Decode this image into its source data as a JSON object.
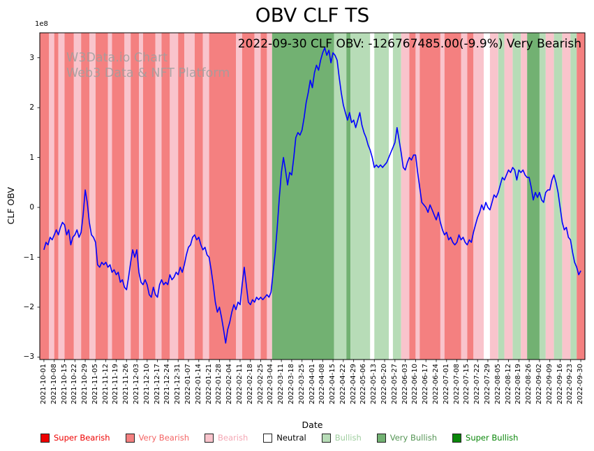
{
  "title": "OBV CLF TS",
  "subtitle": "2022-09-30 CLF OBV: -126767485.00(-9.9%) Very Bearish",
  "watermark": {
    "line1": "W3Data.io Chart",
    "line2": "Web3 Data & NFT Platform"
  },
  "axes": {
    "xlabel": "Date",
    "ylabel": "CLF OBV",
    "y_offset_label": "1e8",
    "xlim": [
      -0.4,
      52.4
    ],
    "ylim": [
      -3.05,
      3.5
    ],
    "y_tick_values": [
      3,
      2,
      1,
      0,
      -1,
      -2,
      -3
    ],
    "y_tick_labels": [
      "3",
      "2",
      "1",
      "0",
      "−1",
      "−2",
      "−3"
    ]
  },
  "chart_data": {
    "type": "line",
    "title": "OBV CLF TS",
    "xlabel": "Date",
    "ylabel": "CLF OBV",
    "y_unit": "1e8",
    "grid": false,
    "line_color": "#0000ff",
    "x_tick_labels": [
      "2021-10-01",
      "2021-10-08",
      "2021-10-15",
      "2021-10-22",
      "2021-10-29",
      "2021-11-05",
      "2021-11-12",
      "2021-11-19",
      "2021-11-26",
      "2021-12-03",
      "2021-12-10",
      "2021-12-17",
      "2021-12-24",
      "2021-12-31",
      "2022-01-07",
      "2022-01-14",
      "2022-01-21",
      "2022-01-28",
      "2022-02-04",
      "2022-02-11",
      "2022-02-18",
      "2022-02-25",
      "2022-03-04",
      "2022-03-11",
      "2022-03-18",
      "2022-03-25",
      "2022-04-01",
      "2022-04-08",
      "2022-04-15",
      "2022-04-22",
      "2022-04-29",
      "2022-05-06",
      "2022-05-13",
      "2022-05-20",
      "2022-05-27",
      "2022-06-03",
      "2022-06-10",
      "2022-06-17",
      "2022-06-24",
      "2022-07-01",
      "2022-07-08",
      "2022-07-15",
      "2022-07-22",
      "2022-07-29",
      "2022-08-05",
      "2022-08-12",
      "2022-08-19",
      "2022-08-26",
      "2022-09-02",
      "2022-09-09",
      "2022-09-16",
      "2022-09-23",
      "2022-09-30"
    ],
    "series": [
      {
        "name": "CLF OBV",
        "x_start": 0,
        "x_step": 0.2,
        "values_unit": "1e8",
        "values": [
          -0.85,
          -0.7,
          -0.75,
          -0.6,
          -0.65,
          -0.55,
          -0.45,
          -0.55,
          -0.4,
          -0.3,
          -0.35,
          -0.55,
          -0.45,
          -0.75,
          -0.6,
          -0.55,
          -0.45,
          -0.6,
          -0.5,
          -0.15,
          0.35,
          0.1,
          -0.3,
          -0.55,
          -0.6,
          -0.7,
          -1.15,
          -1.2,
          -1.1,
          -1.15,
          -1.1,
          -1.2,
          -1.15,
          -1.3,
          -1.25,
          -1.35,
          -1.3,
          -1.5,
          -1.45,
          -1.6,
          -1.65,
          -1.4,
          -1.1,
          -0.85,
          -1.0,
          -0.85,
          -1.3,
          -1.5,
          -1.55,
          -1.45,
          -1.55,
          -1.75,
          -1.8,
          -1.6,
          -1.75,
          -1.8,
          -1.55,
          -1.45,
          -1.55,
          -1.5,
          -1.55,
          -1.35,
          -1.45,
          -1.4,
          -1.3,
          -1.35,
          -1.2,
          -1.3,
          -1.15,
          -0.95,
          -0.8,
          -0.75,
          -0.6,
          -0.55,
          -0.65,
          -0.6,
          -0.75,
          -0.85,
          -0.8,
          -0.95,
          -1.0,
          -1.25,
          -1.55,
          -1.9,
          -2.1,
          -2.0,
          -2.2,
          -2.45,
          -2.72,
          -2.45,
          -2.3,
          -2.1,
          -1.95,
          -2.05,
          -1.9,
          -1.95,
          -1.55,
          -1.2,
          -1.55,
          -1.9,
          -1.95,
          -1.85,
          -1.9,
          -1.8,
          -1.85,
          -1.8,
          -1.85,
          -1.8,
          -1.75,
          -1.8,
          -1.7,
          -1.3,
          -0.9,
          -0.4,
          0.2,
          0.7,
          1.0,
          0.75,
          0.45,
          0.7,
          0.65,
          1.0,
          1.4,
          1.5,
          1.45,
          1.55,
          1.8,
          2.1,
          2.3,
          2.55,
          2.4,
          2.7,
          2.85,
          2.75,
          2.95,
          3.1,
          3.2,
          3.05,
          3.15,
          2.9,
          3.1,
          3.05,
          2.95,
          2.6,
          2.3,
          2.05,
          1.9,
          1.75,
          1.9,
          1.7,
          1.75,
          1.6,
          1.75,
          1.9,
          1.65,
          1.5,
          1.4,
          1.25,
          1.15,
          1.0,
          0.8,
          0.85,
          0.8,
          0.85,
          0.8,
          0.85,
          0.9,
          1.0,
          1.1,
          1.2,
          1.3,
          1.6,
          1.35,
          1.1,
          0.8,
          0.75,
          0.9,
          1.0,
          0.95,
          1.05,
          1.05,
          0.7,
          0.4,
          0.1,
          0.05,
          0.0,
          -0.1,
          0.05,
          -0.05,
          -0.15,
          -0.25,
          -0.1,
          -0.3,
          -0.45,
          -0.55,
          -0.5,
          -0.65,
          -0.6,
          -0.7,
          -0.75,
          -0.7,
          -0.55,
          -0.65,
          -0.6,
          -0.7,
          -0.75,
          -0.65,
          -0.7,
          -0.5,
          -0.35,
          -0.2,
          -0.1,
          0.05,
          -0.05,
          0.1,
          0.0,
          -0.05,
          0.1,
          0.25,
          0.2,
          0.3,
          0.45,
          0.6,
          0.55,
          0.65,
          0.75,
          0.7,
          0.8,
          0.75,
          0.55,
          0.75,
          0.7,
          0.75,
          0.65,
          0.6,
          0.6,
          0.4,
          0.15,
          0.3,
          0.2,
          0.3,
          0.15,
          0.1,
          0.3,
          0.35,
          0.35,
          0.55,
          0.65,
          0.5,
          0.3,
          0.0,
          -0.3,
          -0.45,
          -0.4,
          -0.6,
          -0.65,
          -0.9,
          -1.1,
          -1.2,
          -1.35,
          -1.27
        ]
      }
    ],
    "band_colors": {
      "super_bearish": "#ee0000",
      "very_bearish": "#f48080",
      "bearish": "#f9c4cc",
      "neutral": "#ffffff",
      "bullish": "#b7dcb7",
      "very_bullish": "#72b172",
      "super_bullish": "#0a870a"
    },
    "background_bands": [
      [
        -0.4,
        0.5,
        "very_bearish"
      ],
      [
        0.5,
        1.0,
        "bearish"
      ],
      [
        1.0,
        1.4,
        "very_bearish"
      ],
      [
        1.4,
        2.0,
        "bearish"
      ],
      [
        2.0,
        2.9,
        "very_bearish"
      ],
      [
        2.9,
        3.6,
        "bearish"
      ],
      [
        3.6,
        4.4,
        "very_bearish"
      ],
      [
        4.4,
        5.0,
        "bearish"
      ],
      [
        5.0,
        6.2,
        "very_bearish"
      ],
      [
        6.2,
        6.6,
        "bearish"
      ],
      [
        6.6,
        7.8,
        "very_bearish"
      ],
      [
        7.8,
        8.4,
        "bearish"
      ],
      [
        8.4,
        9.2,
        "very_bearish"
      ],
      [
        9.2,
        9.6,
        "bearish"
      ],
      [
        9.6,
        10.8,
        "very_bearish"
      ],
      [
        10.8,
        11.4,
        "bearish"
      ],
      [
        11.4,
        12.2,
        "very_bearish"
      ],
      [
        12.2,
        13.0,
        "bearish"
      ],
      [
        13.0,
        13.6,
        "very_bearish"
      ],
      [
        13.6,
        14.6,
        "bearish"
      ],
      [
        14.6,
        15.4,
        "very_bearish"
      ],
      [
        15.4,
        16.0,
        "bearish"
      ],
      [
        16.0,
        18.6,
        "very_bearish"
      ],
      [
        18.6,
        19.2,
        "bearish"
      ],
      [
        19.2,
        20.4,
        "very_bearish"
      ],
      [
        20.4,
        21.0,
        "bearish"
      ],
      [
        21.0,
        21.6,
        "very_bearish"
      ],
      [
        21.6,
        22.1,
        "bearish"
      ],
      [
        22.1,
        28.1,
        "very_bullish"
      ],
      [
        28.1,
        29.3,
        "bullish"
      ],
      [
        29.3,
        29.7,
        "very_bullish"
      ],
      [
        29.7,
        31.6,
        "bullish"
      ],
      [
        31.6,
        32.0,
        "neutral"
      ],
      [
        32.0,
        33.4,
        "bullish"
      ],
      [
        33.4,
        33.8,
        "neutral"
      ],
      [
        33.8,
        34.6,
        "bullish"
      ],
      [
        34.6,
        35.4,
        "bearish"
      ],
      [
        35.4,
        36.0,
        "very_bearish"
      ],
      [
        36.0,
        36.4,
        "bearish"
      ],
      [
        36.4,
        38.4,
        "very_bearish"
      ],
      [
        38.4,
        38.8,
        "bearish"
      ],
      [
        38.8,
        40.4,
        "very_bearish"
      ],
      [
        40.4,
        41.0,
        "bearish"
      ],
      [
        41.0,
        41.6,
        "very_bearish"
      ],
      [
        41.6,
        42.6,
        "bearish"
      ],
      [
        42.6,
        43.2,
        "neutral"
      ],
      [
        43.2,
        44.0,
        "bearish"
      ],
      [
        44.0,
        44.6,
        "bullish"
      ],
      [
        44.6,
        45.4,
        "bearish"
      ],
      [
        45.4,
        46.2,
        "bullish"
      ],
      [
        46.2,
        46.8,
        "bearish"
      ],
      [
        46.8,
        48.0,
        "very_bullish"
      ],
      [
        48.0,
        48.6,
        "bullish"
      ],
      [
        48.6,
        49.4,
        "bearish"
      ],
      [
        49.4,
        50.2,
        "bullish"
      ],
      [
        50.2,
        51.0,
        "bearish"
      ],
      [
        51.0,
        51.6,
        "bullish"
      ],
      [
        51.6,
        52.4,
        "very_bearish"
      ]
    ]
  },
  "legend": {
    "items": [
      {
        "label": "Super Bearish",
        "color": "#ee0000",
        "text_color": "#ee0000"
      },
      {
        "label": "Very Bearish",
        "color": "#f48080",
        "text_color": "#f46464"
      },
      {
        "label": "Bearish",
        "color": "#f9c4cc",
        "text_color": "#f4a7b4"
      },
      {
        "label": "Neutral",
        "color": "#ffffff",
        "text_color": "#000000"
      },
      {
        "label": "Bullish",
        "color": "#b7dcb7",
        "text_color": "#9fce9f"
      },
      {
        "label": "Very Bullish",
        "color": "#72b172",
        "text_color": "#559555"
      },
      {
        "label": "Super Bullish",
        "color": "#0a870a",
        "text_color": "#0a870a"
      }
    ]
  }
}
